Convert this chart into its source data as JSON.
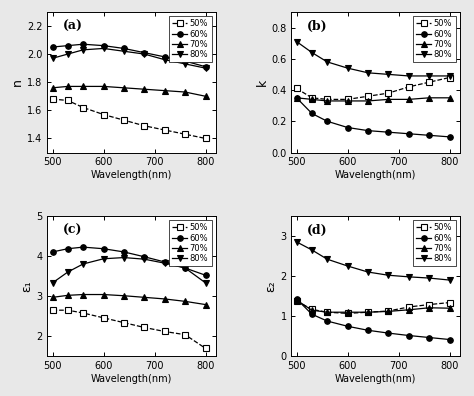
{
  "wavelengths": [
    500,
    530,
    560,
    600,
    640,
    680,
    720,
    760,
    800
  ],
  "panel_a": {
    "label": "(a)",
    "ylabel": "n",
    "ylim": [
      1.3,
      2.3
    ],
    "yticks": [
      1.4,
      1.6,
      1.8,
      2.0,
      2.2
    ],
    "series": {
      "50%": [
        1.68,
        1.67,
        1.62,
        1.57,
        1.53,
        1.49,
        1.46,
        1.43,
        1.4
      ],
      "60%": [
        2.05,
        2.06,
        2.07,
        2.06,
        2.04,
        2.01,
        1.98,
        1.95,
        1.91
      ],
      "70%": [
        1.76,
        1.77,
        1.77,
        1.77,
        1.76,
        1.75,
        1.74,
        1.73,
        1.7
      ],
      "80%": [
        1.97,
        2.0,
        2.03,
        2.04,
        2.02,
        2.0,
        1.96,
        1.93,
        1.9
      ]
    }
  },
  "panel_b": {
    "label": "(b)",
    "ylabel": "k",
    "ylim": [
      0.0,
      0.9
    ],
    "yticks": [
      0.0,
      0.2,
      0.4,
      0.6,
      0.8
    ],
    "series": {
      "50%": [
        0.41,
        0.35,
        0.34,
        0.34,
        0.36,
        0.38,
        0.42,
        0.45,
        0.48
      ],
      "60%": [
        0.35,
        0.25,
        0.2,
        0.16,
        0.14,
        0.13,
        0.12,
        0.11,
        0.1
      ],
      "70%": [
        0.35,
        0.34,
        0.33,
        0.33,
        0.33,
        0.34,
        0.34,
        0.35,
        0.35
      ],
      "80%": [
        0.71,
        0.64,
        0.58,
        0.54,
        0.51,
        0.5,
        0.49,
        0.49,
        0.49
      ]
    }
  },
  "panel_c": {
    "label": "(c)",
    "ylabel": "ε₁",
    "ylim": [
      1.5,
      5.0
    ],
    "yticks": [
      2,
      3,
      4,
      5
    ],
    "series": {
      "50%": [
        2.65,
        2.65,
        2.58,
        2.46,
        2.34,
        2.22,
        2.12,
        2.04,
        1.7
      ],
      "60%": [
        4.1,
        4.18,
        4.22,
        4.18,
        4.1,
        3.98,
        3.85,
        3.7,
        3.52
      ],
      "70%": [
        2.97,
        3.02,
        3.04,
        3.04,
        3.01,
        2.97,
        2.93,
        2.87,
        2.79
      ],
      "80%": [
        3.33,
        3.6,
        3.8,
        3.93,
        3.96,
        3.92,
        3.82,
        3.7,
        3.33
      ]
    }
  },
  "panel_d": {
    "label": "(d)",
    "ylabel": "ε₂",
    "ylim": [
      0.0,
      3.5
    ],
    "yticks": [
      0,
      1,
      2,
      3
    ],
    "series": {
      "50%": [
        1.38,
        1.17,
        1.1,
        1.07,
        1.1,
        1.13,
        1.23,
        1.29,
        1.34
      ],
      "60%": [
        1.43,
        1.05,
        0.88,
        0.75,
        0.65,
        0.58,
        0.52,
        0.47,
        0.42
      ],
      "70%": [
        1.4,
        1.15,
        1.1,
        1.1,
        1.1,
        1.12,
        1.16,
        1.21,
        1.2
      ],
      "80%": [
        2.85,
        2.65,
        2.42,
        2.25,
        2.1,
        2.02,
        1.98,
        1.95,
        1.9
      ]
    }
  },
  "series_styles": {
    "50%": {
      "color": "black",
      "marker": "s",
      "fillstyle": "none",
      "linestyle": "--"
    },
    "60%": {
      "color": "black",
      "marker": "o",
      "fillstyle": "full",
      "linestyle": "-"
    },
    "70%": {
      "color": "black",
      "marker": "^",
      "fillstyle": "full",
      "linestyle": "-"
    },
    "80%": {
      "color": "black",
      "marker": "v",
      "fillstyle": "full",
      "linestyle": "-"
    }
  },
  "xlabel": "Wavelength(nm)",
  "xlim": [
    490,
    820
  ],
  "xticks": [
    500,
    600,
    700,
    800
  ],
  "fig_facecolor": "#e8e8e8",
  "axes_facecolor": "#ffffff"
}
